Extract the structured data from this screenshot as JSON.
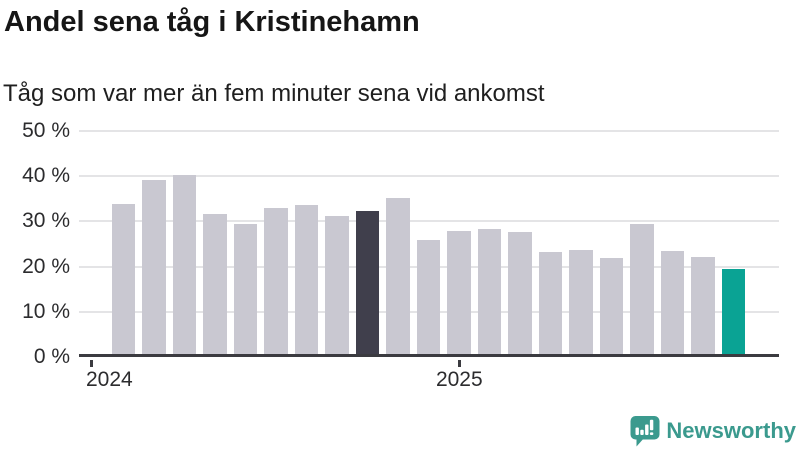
{
  "title": "Andel sena tåg i Kristinehamn",
  "subtitle": "Tåg som var mer än fem minuter sena vid ankomst",
  "footer": {
    "brand": "Newsworthy"
  },
  "colors": {
    "bar_default": "#c9c8d1",
    "bar_highlight_previous": "#403f4c",
    "bar_highlight_latest": "#0aa394",
    "axis": "#3b3b40",
    "gridline": "#e4e4e6",
    "brand_teal": "#3b9a8e"
  },
  "chart_data": {
    "type": "bar",
    "title": "Andel sena tåg i Kristinehamn",
    "subtitle": "Tåg som var mer än fem minuter sena vid ankomst",
    "unit": "%",
    "categories": [
      "2024-02",
      "2024-03",
      "2024-04",
      "2024-05",
      "2024-06",
      "2024-07",
      "2024-08",
      "2024-09",
      "2024-10",
      "2024-11",
      "2024-12",
      "2025-01",
      "2025-02",
      "2025-03",
      "2025-04",
      "2025-05",
      "2025-06",
      "2025-07",
      "2025-08",
      "2025-09",
      "2025-10"
    ],
    "values": [
      33.2,
      38.4,
      39.7,
      31.0,
      28.7,
      32.2,
      33.0,
      30.6,
      31.6,
      34.6,
      25.3,
      27.3,
      27.6,
      27.1,
      22.5,
      23.0,
      21.2,
      28.7,
      22.9,
      21.4,
      18.8
    ],
    "highlight_previous_year_index": 8,
    "highlight_latest_index": 20,
    "ylim": [
      0,
      50
    ],
    "yticks": [
      0,
      10,
      20,
      30,
      40,
      50
    ],
    "ytick_labels": [
      "0 %",
      "10 %",
      "20 %",
      "30 %",
      "40 %",
      "50 %"
    ],
    "xtick_labels": [
      "2024",
      "2025"
    ],
    "grid": "horizontal",
    "legend": "none"
  }
}
